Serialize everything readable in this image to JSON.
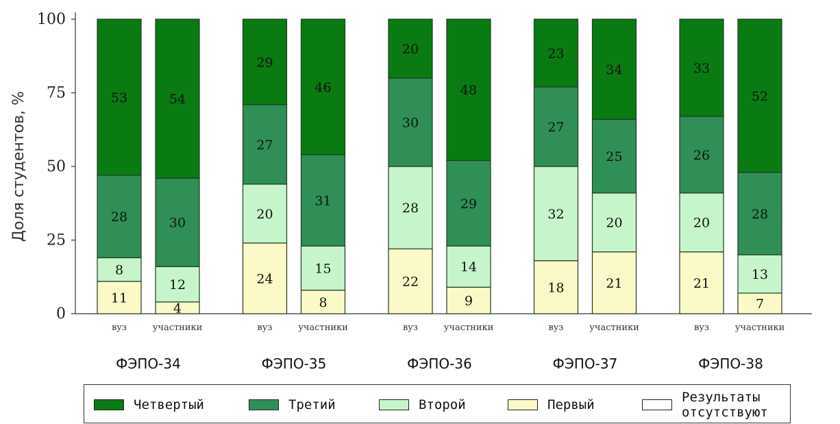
{
  "chart_data": {
    "type": "bar",
    "stacked": true,
    "ylabel": "Доля студентов, %",
    "ylim": [
      0,
      100
    ],
    "yticks": [
      "0",
      "25",
      "50",
      "75",
      "100"
    ],
    "groups": [
      {
        "name": "ФЭПО-34",
        "bars": [
          {
            "label": "вуз",
            "values": {
              "Первый": 11,
              "Второй": 8,
              "Третий": 28,
              "Четвертый": 53
            }
          },
          {
            "label": "участники",
            "values": {
              "Первый": 4,
              "Второй": 12,
              "Третий": 30,
              "Четвертый": 54
            }
          }
        ]
      },
      {
        "name": "ФЭПО-35",
        "bars": [
          {
            "label": "вуз",
            "values": {
              "Первый": 24,
              "Второй": 20,
              "Третий": 27,
              "Четвертый": 29
            }
          },
          {
            "label": "участники",
            "values": {
              "Первый": 8,
              "Второй": 15,
              "Третий": 31,
              "Четвертый": 46
            }
          }
        ]
      },
      {
        "name": "ФЭПО-36",
        "bars": [
          {
            "label": "вуз",
            "values": {
              "Первый": 22,
              "Второй": 28,
              "Третий": 30,
              "Четвертый": 20
            }
          },
          {
            "label": "участники",
            "values": {
              "Первый": 9,
              "Второй": 14,
              "Третий": 29,
              "Четвертый": 48
            }
          }
        ]
      },
      {
        "name": "ФЭПО-37",
        "bars": [
          {
            "label": "вуз",
            "values": {
              "Первый": 18,
              "Второй": 32,
              "Третий": 27,
              "Четвертый": 23
            }
          },
          {
            "label": "участники",
            "values": {
              "Первый": 21,
              "Второй": 20,
              "Третий": 25,
              "Четвертый": 34
            }
          }
        ]
      },
      {
        "name": "ФЭПО-38",
        "bars": [
          {
            "label": "вуз",
            "values": {
              "Первый": 21,
              "Второй": 20,
              "Третий": 26,
              "Четвертый": 33
            }
          },
          {
            "label": "участники",
            "values": {
              "Первый": 7,
              "Второй": 13,
              "Третий": 28,
              "Четвертый": 52
            }
          }
        ]
      }
    ],
    "series": [
      {
        "name": "Первый",
        "color": "#fbf9c7"
      },
      {
        "name": "Второй",
        "color": "#c7f5cb"
      },
      {
        "name": "Третий",
        "color": "#2f8f57"
      },
      {
        "name": "Четвертый",
        "color": "#0a7a12"
      }
    ],
    "legend": {
      "position": "bottom",
      "entries": [
        {
          "name": "Четвертый",
          "color": "#0a7a12"
        },
        {
          "name": "Третий",
          "color": "#2f8f57"
        },
        {
          "name": "Второй",
          "color": "#c7f5cb"
        },
        {
          "name": "Первый",
          "color": "#fbf9c7"
        },
        {
          "name": "Результаты отсутствуют",
          "color": "#ffffff"
        }
      ]
    }
  }
}
